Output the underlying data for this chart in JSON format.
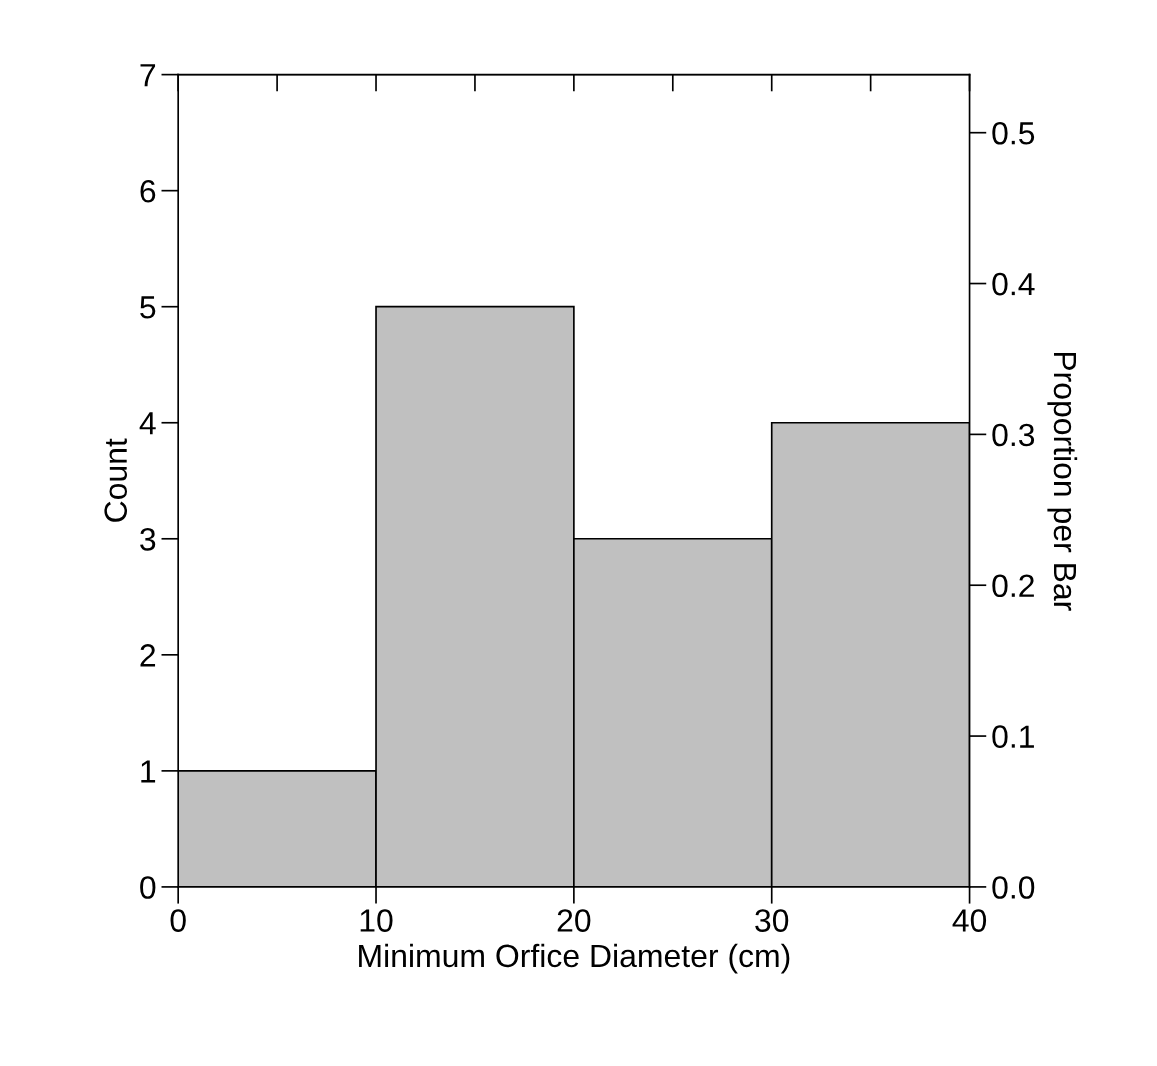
{
  "chart_data": {
    "type": "histogram",
    "xlabel": "Minimum Orfice Diameter (cm)",
    "ylabel": "Count",
    "y2label": "Proportion per Bar",
    "bins": [
      0,
      10,
      20,
      30,
      40
    ],
    "values": [
      1,
      5,
      3,
      4
    ],
    "color": "#c0c0c0",
    "xlim": [
      0,
      40
    ],
    "xticks": [
      0,
      10,
      20,
      30,
      40
    ],
    "ylim": [
      0,
      7
    ],
    "yticks": [
      0,
      1,
      2,
      3,
      4,
      5,
      6,
      7
    ],
    "y2lim": [
      0,
      0.5385
    ],
    "y2ticks": [
      {
        "value": 0,
        "label": "0.0"
      },
      0.1,
      0.2,
      0.3,
      0.4,
      0.5
    ],
    "grid": false,
    "legend": false
  }
}
